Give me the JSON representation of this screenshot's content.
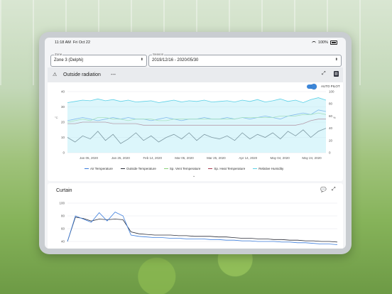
{
  "status": {
    "time": "11:18 AM",
    "date": "Fri Oct 22",
    "battery": "100%"
  },
  "zone": {
    "label": "Zone",
    "value": "Zone 3 (Delphi)"
  },
  "season": {
    "label": "Season",
    "value": "2019/12/16 - 2020/05/30"
  },
  "radiation_card": {
    "title": "Outside radiation",
    "value": "---",
    "autopilot_label": "AUTO PILOT"
  },
  "curtain_card": {
    "title": "Curtain"
  },
  "chart_data": [
    {
      "type": "line",
      "title": "",
      "y_left_ticks": [
        "40",
        "30",
        "20",
        "10",
        "0"
      ],
      "y_right_ticks": [
        "100",
        "80",
        "60",
        "40",
        "20",
        "0"
      ],
      "y_left_label": "°C",
      "y_right_label": "%",
      "ylim": [
        0,
        40
      ],
      "y2lim": [
        0,
        100
      ],
      "x_ticks": [
        "Jan 05, 2020",
        "Jan 25, 2020",
        "Feb 14, 2020",
        "Mar 05, 2020",
        "Mar 25, 2020",
        "Apr 14, 2020",
        "May 04, 2020",
        "May 24, 2020"
      ],
      "legend_placement": "bottom",
      "series": [
        {
          "name": "Air Temperature",
          "color": "#3b7ddd",
          "values": [
            21,
            22,
            23,
            22,
            21,
            22,
            23,
            22,
            23,
            22,
            22,
            21,
            22,
            23,
            22,
            21,
            22,
            22,
            23,
            22,
            22,
            23,
            22,
            23,
            22,
            23,
            24,
            23,
            22,
            24,
            25,
            26,
            25,
            28,
            27
          ]
        },
        {
          "name": "Outside Temperature",
          "color": "#2c2f3a",
          "values": [
            10,
            7,
            11,
            9,
            14,
            8,
            12,
            6,
            9,
            13,
            8,
            11,
            7,
            10,
            12,
            9,
            13,
            8,
            12,
            10,
            9,
            11,
            8,
            13,
            9,
            12,
            10,
            13,
            9,
            14,
            11,
            15,
            10,
            14,
            16
          ]
        },
        {
          "name": "Sp. Vent Temperature",
          "color": "#8bd17c",
          "values": [
            20,
            21,
            22,
            21,
            23,
            23,
            22,
            22,
            21,
            22,
            22,
            22,
            21,
            21,
            22,
            22,
            22,
            22,
            22,
            22,
            22,
            22,
            22,
            23,
            23,
            23,
            23,
            23,
            24,
            24,
            24,
            25,
            25,
            26,
            25
          ]
        },
        {
          "name": "Sp. Heat Temperature",
          "color": "#a8384f",
          "values": [
            19,
            19,
            20,
            20,
            20,
            20,
            19,
            19,
            19,
            19,
            18,
            18,
            18,
            18,
            18,
            18,
            18,
            18,
            18,
            18,
            18,
            18,
            18,
            18,
            18,
            18,
            18,
            18,
            18,
            18,
            18,
            19,
            21,
            22,
            22
          ]
        },
        {
          "name": "Relative Humidity",
          "color": "#5ad0e6",
          "values": [
            82,
            84,
            86,
            85,
            88,
            85,
            87,
            84,
            86,
            83,
            84,
            85,
            82,
            84,
            86,
            83,
            85,
            84,
            86,
            83,
            84,
            85,
            83,
            86,
            84,
            87,
            83,
            85,
            88,
            84,
            86,
            82,
            87,
            90,
            86
          ]
        }
      ]
    },
    {
      "type": "line",
      "title": "",
      "y_ticks": [
        "100",
        "80",
        "60",
        "40",
        "20"
      ],
      "ylim": [
        20,
        100
      ],
      "series": [
        {
          "name": "",
          "color": "#2c2f3a",
          "values": [
            40,
            78,
            76,
            72,
            75,
            74,
            75,
            74,
            55,
            52,
            51,
            50,
            50,
            50,
            49,
            49,
            48,
            48,
            48,
            47,
            47,
            46,
            45,
            45,
            44,
            44,
            43,
            43,
            42,
            42,
            41,
            41,
            40,
            40,
            39
          ]
        },
        {
          "name": "",
          "color": "#3b7ddd",
          "values": [
            40,
            80,
            75,
            70,
            85,
            72,
            86,
            80,
            50,
            48,
            47,
            46,
            46,
            45,
            45,
            44,
            44,
            44,
            43,
            43,
            42,
            42,
            41,
            41,
            40,
            40,
            40,
            39,
            39,
            38,
            38,
            37,
            36,
            36,
            35
          ]
        }
      ]
    }
  ]
}
